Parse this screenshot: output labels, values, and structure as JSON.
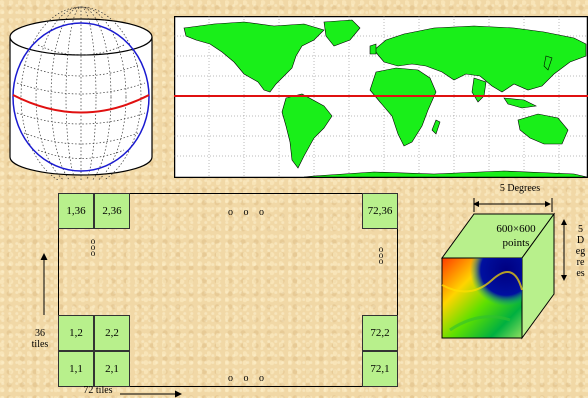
{
  "tiles": {
    "top_left_1": "1,36",
    "top_left_2": "2,36",
    "top_right": "72,36",
    "bottom_left_12": "1,2",
    "bottom_left_22": "2,2",
    "bottom_left_11": "1,1",
    "bottom_left_21": "2,1",
    "bottom_right_2": "72,2",
    "bottom_right_1": "72,1"
  },
  "ellipsis": {
    "horizontal": "o o o",
    "vertical": "o\no\no"
  },
  "labels": {
    "rows": "36\ntiles",
    "cols": "72 tiles",
    "width": "5 Degrees",
    "height_chars": [
      "5",
      "D",
      "eg",
      "re",
      "es"
    ],
    "points": "600×600\npoints"
  },
  "colors": {
    "tile_fill": "#b8f08c",
    "land": "#19ef19",
    "equator": "#e01010",
    "meridian": "#1a1ad0"
  }
}
